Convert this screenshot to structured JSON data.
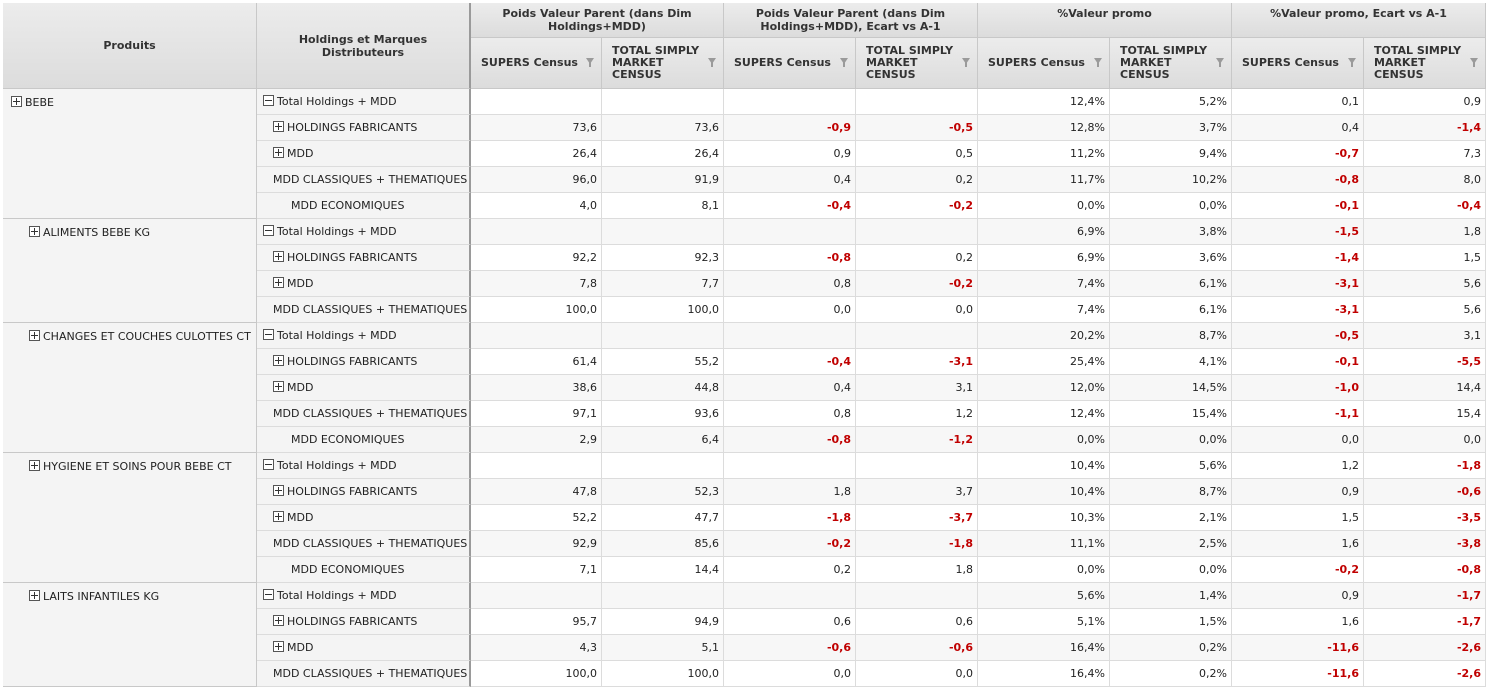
{
  "headers": {
    "produits": "Produits",
    "holdings": "Holdings et Marques Distributeurs",
    "groups": [
      "Poids Valeur Parent (dans Dim Holdings+MDD)",
      "Poids Valeur Parent (dans Dim Holdings+MDD), Ecart vs A-1",
      "%Valeur promo",
      "%Valeur promo, Ecart vs A-1"
    ],
    "sub": [
      "SUPERS Census",
      "TOTAL SIMPLY MARKET CENSUS"
    ]
  },
  "products": [
    {
      "label": "BEBE",
      "rows": 5
    },
    {
      "label": "ALIMENTS BEBE KG",
      "rows": 4
    },
    {
      "label": "CHANGES ET COUCHES CULOTTES CT",
      "rows": 5
    },
    {
      "label": "HYGIENE ET SOINS POUR BEBE CT",
      "rows": 5
    },
    {
      "label": "LAITS INFANTILES KG",
      "rows": 4
    }
  ],
  "rows": [
    {
      "label": "Total Holdings + MDD",
      "expander": "minus",
      "indent": 0,
      "values": [
        "",
        "",
        "",
        "",
        "12,4%",
        "5,2%",
        "0,1",
        "0,9"
      ],
      "neg": [
        0,
        0,
        0,
        0,
        0,
        0,
        0,
        0
      ]
    },
    {
      "label": "HOLDINGS FABRICANTS",
      "expander": "plus",
      "indent": 1,
      "values": [
        "73,6",
        "73,6",
        "-0,9",
        "-0,5",
        "12,8%",
        "3,7%",
        "0,4",
        "-1,4"
      ],
      "neg": [
        0,
        0,
        1,
        1,
        0,
        0,
        0,
        1
      ]
    },
    {
      "label": "MDD",
      "expander": "plus",
      "indent": 1,
      "values": [
        "26,4",
        "26,4",
        "0,9",
        "0,5",
        "11,2%",
        "9,4%",
        "-0,7",
        "7,3"
      ],
      "neg": [
        0,
        0,
        0,
        0,
        0,
        0,
        1,
        0
      ]
    },
    {
      "label": "MDD CLASSIQUES + THEMATIQUES",
      "expander": "",
      "indent": 2,
      "values": [
        "96,0",
        "91,9",
        "0,4",
        "0,2",
        "11,7%",
        "10,2%",
        "-0,8",
        "8,0"
      ],
      "neg": [
        0,
        0,
        0,
        0,
        0,
        0,
        1,
        0
      ]
    },
    {
      "label": "MDD ECONOMIQUES",
      "expander": "",
      "indent": 3,
      "values": [
        "4,0",
        "8,1",
        "-0,4",
        "-0,2",
        "0,0%",
        "0,0%",
        "-0,1",
        "-0,4"
      ],
      "neg": [
        0,
        0,
        1,
        1,
        0,
        0,
        1,
        1
      ]
    },
    {
      "label": "Total Holdings + MDD",
      "expander": "minus",
      "indent": 0,
      "values": [
        "",
        "",
        "",
        "",
        "6,9%",
        "3,8%",
        "-1,5",
        "1,8"
      ],
      "neg": [
        0,
        0,
        0,
        0,
        0,
        0,
        1,
        0
      ]
    },
    {
      "label": "HOLDINGS FABRICANTS",
      "expander": "plus",
      "indent": 1,
      "values": [
        "92,2",
        "92,3",
        "-0,8",
        "0,2",
        "6,9%",
        "3,6%",
        "-1,4",
        "1,5"
      ],
      "neg": [
        0,
        0,
        1,
        0,
        0,
        0,
        1,
        0
      ]
    },
    {
      "label": "MDD",
      "expander": "plus",
      "indent": 1,
      "values": [
        "7,8",
        "7,7",
        "0,8",
        "-0,2",
        "7,4%",
        "6,1%",
        "-3,1",
        "5,6"
      ],
      "neg": [
        0,
        0,
        0,
        1,
        0,
        0,
        1,
        0
      ]
    },
    {
      "label": "MDD CLASSIQUES + THEMATIQUES",
      "expander": "",
      "indent": 2,
      "values": [
        "100,0",
        "100,0",
        "0,0",
        "0,0",
        "7,4%",
        "6,1%",
        "-3,1",
        "5,6"
      ],
      "neg": [
        0,
        0,
        0,
        0,
        0,
        0,
        1,
        0
      ]
    },
    {
      "label": "Total Holdings + MDD",
      "expander": "minus",
      "indent": 0,
      "values": [
        "",
        "",
        "",
        "",
        "20,2%",
        "8,7%",
        "-0,5",
        "3,1"
      ],
      "neg": [
        0,
        0,
        0,
        0,
        0,
        0,
        1,
        0
      ]
    },
    {
      "label": "HOLDINGS FABRICANTS",
      "expander": "plus",
      "indent": 1,
      "values": [
        "61,4",
        "55,2",
        "-0,4",
        "-3,1",
        "25,4%",
        "4,1%",
        "-0,1",
        "-5,5"
      ],
      "neg": [
        0,
        0,
        1,
        1,
        0,
        0,
        1,
        1
      ]
    },
    {
      "label": "MDD",
      "expander": "plus",
      "indent": 1,
      "values": [
        "38,6",
        "44,8",
        "0,4",
        "3,1",
        "12,0%",
        "14,5%",
        "-1,0",
        "14,4"
      ],
      "neg": [
        0,
        0,
        0,
        0,
        0,
        0,
        1,
        0
      ]
    },
    {
      "label": "MDD CLASSIQUES + THEMATIQUES",
      "expander": "",
      "indent": 2,
      "values": [
        "97,1",
        "93,6",
        "0,8",
        "1,2",
        "12,4%",
        "15,4%",
        "-1,1",
        "15,4"
      ],
      "neg": [
        0,
        0,
        0,
        0,
        0,
        0,
        1,
        0
      ]
    },
    {
      "label": "MDD ECONOMIQUES",
      "expander": "",
      "indent": 3,
      "values": [
        "2,9",
        "6,4",
        "-0,8",
        "-1,2",
        "0,0%",
        "0,0%",
        "0,0",
        "0,0"
      ],
      "neg": [
        0,
        0,
        1,
        1,
        0,
        0,
        0,
        0
      ]
    },
    {
      "label": "Total Holdings + MDD",
      "expander": "minus",
      "indent": 0,
      "values": [
        "",
        "",
        "",
        "",
        "10,4%",
        "5,6%",
        "1,2",
        "-1,8"
      ],
      "neg": [
        0,
        0,
        0,
        0,
        0,
        0,
        0,
        1
      ]
    },
    {
      "label": "HOLDINGS FABRICANTS",
      "expander": "plus",
      "indent": 1,
      "values": [
        "47,8",
        "52,3",
        "1,8",
        "3,7",
        "10,4%",
        "8,7%",
        "0,9",
        "-0,6"
      ],
      "neg": [
        0,
        0,
        0,
        0,
        0,
        0,
        0,
        1
      ]
    },
    {
      "label": "MDD",
      "expander": "plus",
      "indent": 1,
      "values": [
        "52,2",
        "47,7",
        "-1,8",
        "-3,7",
        "10,3%",
        "2,1%",
        "1,5",
        "-3,5"
      ],
      "neg": [
        0,
        0,
        1,
        1,
        0,
        0,
        0,
        1
      ]
    },
    {
      "label": "MDD CLASSIQUES + THEMATIQUES",
      "expander": "",
      "indent": 2,
      "values": [
        "92,9",
        "85,6",
        "-0,2",
        "-1,8",
        "11,1%",
        "2,5%",
        "1,6",
        "-3,8"
      ],
      "neg": [
        0,
        0,
        1,
        1,
        0,
        0,
        0,
        1
      ]
    },
    {
      "label": "MDD ECONOMIQUES",
      "expander": "",
      "indent": 3,
      "values": [
        "7,1",
        "14,4",
        "0,2",
        "1,8",
        "0,0%",
        "0,0%",
        "-0,2",
        "-0,8"
      ],
      "neg": [
        0,
        0,
        0,
        0,
        0,
        0,
        1,
        1
      ]
    },
    {
      "label": "Total Holdings + MDD",
      "expander": "minus",
      "indent": 0,
      "values": [
        "",
        "",
        "",
        "",
        "5,6%",
        "1,4%",
        "0,9",
        "-1,7"
      ],
      "neg": [
        0,
        0,
        0,
        0,
        0,
        0,
        0,
        1
      ]
    },
    {
      "label": "HOLDINGS FABRICANTS",
      "expander": "plus",
      "indent": 1,
      "values": [
        "95,7",
        "94,9",
        "0,6",
        "0,6",
        "5,1%",
        "1,5%",
        "1,6",
        "-1,7"
      ],
      "neg": [
        0,
        0,
        0,
        0,
        0,
        0,
        0,
        1
      ]
    },
    {
      "label": "MDD",
      "expander": "plus",
      "indent": 1,
      "values": [
        "4,3",
        "5,1",
        "-0,6",
        "-0,6",
        "16,4%",
        "0,2%",
        "-11,6",
        "-2,6"
      ],
      "neg": [
        0,
        0,
        1,
        1,
        0,
        0,
        1,
        1
      ]
    },
    {
      "label": "MDD CLASSIQUES + THEMATIQUES",
      "expander": "",
      "indent": 2,
      "values": [
        "100,0",
        "100,0",
        "0,0",
        "0,0",
        "16,4%",
        "0,2%",
        "-11,6",
        "-2,6"
      ],
      "neg": [
        0,
        0,
        0,
        0,
        0,
        0,
        1,
        1
      ]
    }
  ],
  "colors": {
    "negative": "#c00000",
    "header_bg": "#e4e4e4",
    "dim_bg": "#f4f4f4"
  }
}
